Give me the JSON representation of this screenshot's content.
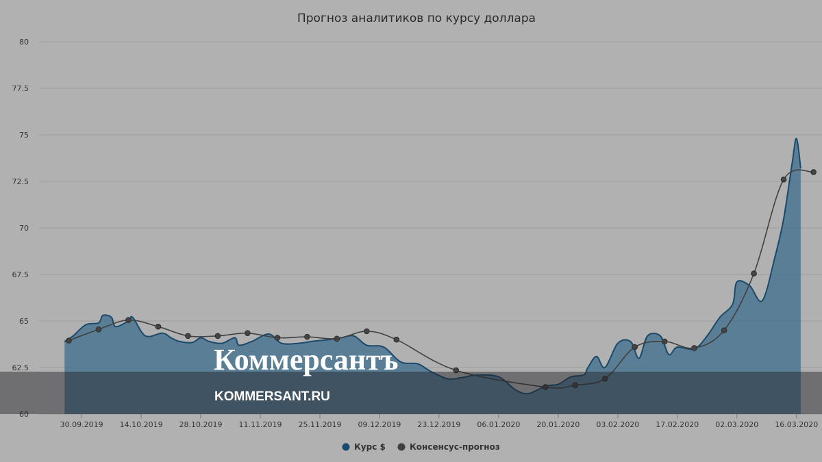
{
  "chart_data": {
    "type": "area",
    "title": "Прогноз аналитиков по курсу доллара",
    "ylim": [
      60,
      80
    ],
    "y_ticks": [
      "60",
      "62.5",
      "65",
      "67.5",
      "70",
      "72.5",
      "75",
      "77.5",
      "80"
    ],
    "x_ticks": [
      "30.09.2019",
      "14.10.2019",
      "28.10.2019",
      "11.11.2019",
      "25.11.2019",
      "09.12.2019",
      "23.12.2019",
      "06.01.2020",
      "20.01.2020",
      "03.02.2020",
      "17.02.2020",
      "02.03.2020",
      "16.03.2020"
    ],
    "grid": true,
    "legend_position": "bottom",
    "series": [
      {
        "name": "Курс $",
        "kind": "area",
        "color": "#4a7591",
        "points": [
          [
            "2019-09-26",
            63.9
          ],
          [
            "2019-09-28",
            64.2
          ],
          [
            "2019-10-01",
            64.8
          ],
          [
            "2019-10-04",
            64.9
          ],
          [
            "2019-10-05",
            65.3
          ],
          [
            "2019-10-07",
            65.2
          ],
          [
            "2019-10-08",
            64.7
          ],
          [
            "2019-10-11",
            65.0
          ],
          [
            "2019-10-12",
            65.2
          ],
          [
            "2019-10-15",
            64.2
          ],
          [
            "2019-10-19",
            64.35
          ],
          [
            "2019-10-21",
            64.1
          ],
          [
            "2019-10-23",
            63.9
          ],
          [
            "2019-10-26",
            63.85
          ],
          [
            "2019-10-28",
            64.1
          ],
          [
            "2019-10-30",
            63.9
          ],
          [
            "2019-11-02",
            63.8
          ],
          [
            "2019-11-05",
            64.1
          ],
          [
            "2019-11-06",
            63.7
          ],
          [
            "2019-11-09",
            63.9
          ],
          [
            "2019-11-13",
            64.3
          ],
          [
            "2019-11-16",
            63.8
          ],
          [
            "2019-11-20",
            63.8
          ],
          [
            "2019-11-23",
            63.9
          ],
          [
            "2019-11-27",
            64.0
          ],
          [
            "2019-11-30",
            64.1
          ],
          [
            "2019-12-03",
            64.2
          ],
          [
            "2019-12-06",
            63.7
          ],
          [
            "2019-12-10",
            63.6
          ],
          [
            "2019-12-14",
            62.8
          ],
          [
            "2019-12-18",
            62.7
          ],
          [
            "2019-12-21",
            62.3
          ],
          [
            "2019-12-25",
            61.9
          ],
          [
            "2019-12-28",
            61.95
          ],
          [
            "2020-01-01",
            62.1
          ],
          [
            "2020-01-06",
            62.0
          ],
          [
            "2020-01-10",
            61.3
          ],
          [
            "2020-01-13",
            61.1
          ],
          [
            "2020-01-17",
            61.5
          ],
          [
            "2020-01-20",
            61.6
          ],
          [
            "2020-01-23",
            62.0
          ],
          [
            "2020-01-26",
            62.1
          ],
          [
            "2020-01-27",
            62.5
          ],
          [
            "2020-01-29",
            63.1
          ],
          [
            "2020-01-31",
            62.5
          ],
          [
            "2020-02-03",
            63.8
          ],
          [
            "2020-02-06",
            63.9
          ],
          [
            "2020-02-08",
            63.0
          ],
          [
            "2020-02-10",
            64.2
          ],
          [
            "2020-02-13",
            64.2
          ],
          [
            "2020-02-15",
            63.2
          ],
          [
            "2020-02-17",
            63.6
          ],
          [
            "2020-02-21",
            63.5
          ],
          [
            "2020-02-24",
            64.2
          ],
          [
            "2020-02-27",
            65.2
          ],
          [
            "2020-03-01",
            65.9
          ],
          [
            "2020-03-02",
            67.1
          ],
          [
            "2020-03-05",
            66.9
          ],
          [
            "2020-03-08",
            66.1
          ],
          [
            "2020-03-11",
            68.5
          ],
          [
            "2020-03-13",
            70.5
          ],
          [
            "2020-03-15",
            73.5
          ],
          [
            "2020-03-16",
            74.8
          ],
          [
            "2020-03-17",
            73.2
          ]
        ]
      },
      {
        "name": "Консенсус-прогноз",
        "kind": "line",
        "color": "#404040",
        "points": [
          [
            "2019-09-27",
            63.95
          ],
          [
            "2019-10-04",
            64.55
          ],
          [
            "2019-10-11",
            65.05
          ],
          [
            "2019-10-18",
            64.7
          ],
          [
            "2019-10-25",
            64.2
          ],
          [
            "2019-11-01",
            64.2
          ],
          [
            "2019-11-08",
            64.35
          ],
          [
            "2019-11-15",
            64.1
          ],
          [
            "2019-11-22",
            64.15
          ],
          [
            "2019-11-29",
            64.05
          ],
          [
            "2019-12-06",
            64.45
          ],
          [
            "2019-12-13",
            64.0
          ],
          [
            "2019-12-27",
            62.35
          ],
          [
            "2020-01-17",
            61.45
          ],
          [
            "2020-01-24",
            61.55
          ],
          [
            "2020-01-31",
            61.9
          ],
          [
            "2020-02-07",
            63.6
          ],
          [
            "2020-02-14",
            63.9
          ],
          [
            "2020-02-21",
            63.55
          ],
          [
            "2020-02-28",
            64.5
          ],
          [
            "2020-03-06",
            67.55
          ],
          [
            "2020-03-13",
            72.6
          ],
          [
            "2020-03-20",
            73.0
          ]
        ]
      }
    ]
  },
  "watermark": {
    "brand": "Коммерсантъ",
    "url": "KOMMERSANT.RU"
  }
}
